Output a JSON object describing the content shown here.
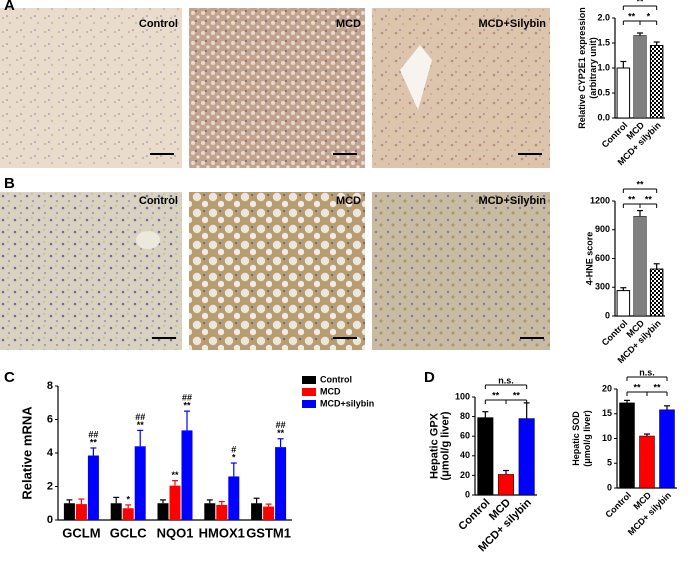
{
  "panels": [
    "A",
    "B",
    "C",
    "D"
  ],
  "image_rows": [
    [
      "Control",
      "MCD",
      "MCD+Silybin"
    ],
    [
      "Control",
      "MCD",
      "MCD+Silybin"
    ]
  ],
  "chart_data": [
    {
      "type": "bar",
      "ylabel": [
        "Relative CYP2E1 expression",
        "(arbitrary unit)"
      ],
      "categories": [
        "Control",
        "MCD",
        "MCD+ silybin"
      ],
      "values": [
        1.0,
        1.65,
        1.45
      ],
      "errors": [
        0.13,
        0.05,
        0.07
      ],
      "colors": [
        "#ffffff",
        "#808080",
        "#ffffff"
      ],
      "pattern": [
        null,
        null,
        "checkered"
      ],
      "ylim": [
        0,
        2.0
      ],
      "yticks": [
        {
          "value": 0,
          "label": "0.0"
        },
        0.5,
        {
          "value": 1,
          "label": "1.0"
        },
        1.5,
        {
          "value": 2,
          "label": "2.0"
        }
      ],
      "comparisons": [
        {
          "groups": [
            "Control",
            "MCD"
          ],
          "label": "**"
        },
        {
          "groups": [
            "MCD",
            "MCD+ silybin"
          ],
          "label": "*"
        },
        {
          "groups": [
            "Control",
            "MCD+ silybin"
          ],
          "label": "**"
        }
      ]
    },
    {
      "type": "bar",
      "ylabel": [
        "4-HNE score"
      ],
      "categories": [
        "Control",
        "MCD",
        "MCD+ silybin"
      ],
      "values": [
        265,
        1040,
        490
      ],
      "errors": [
        30,
        60,
        55
      ],
      "colors": [
        "#ffffff",
        "#808080",
        "#ffffff"
      ],
      "pattern": [
        null,
        null,
        "checkered"
      ],
      "ylim": [
        0,
        1200
      ],
      "yticks": [
        0,
        300,
        600,
        900,
        1200
      ],
      "comparisons": [
        {
          "groups": [
            "Control",
            "MCD"
          ],
          "label": "**"
        },
        {
          "groups": [
            "MCD",
            "MCD+ silybin"
          ],
          "label": "**"
        },
        {
          "groups": [
            "Control",
            "MCD+ silybin"
          ],
          "label": "**"
        }
      ]
    },
    {
      "type": "grouped_bar",
      "ylabel": [
        "Relative mRNA"
      ],
      "legend": "upper right",
      "categories": [
        "GCLM",
        "GCLC",
        "NQO1",
        "HMOX1",
        "GSTM1"
      ],
      "series": [
        {
          "name": "Control",
          "color": "#000000",
          "values": [
            1.0,
            1.0,
            1.0,
            1.0,
            1.0
          ],
          "errors": [
            0.2,
            0.35,
            0.2,
            0.2,
            0.3
          ]
        },
        {
          "name": "MCD",
          "color": "#ff0000",
          "values": [
            0.95,
            0.7,
            2.05,
            0.9,
            0.8
          ],
          "errors": [
            0.3,
            0.2,
            0.3,
            0.2,
            0.15
          ],
          "annotations": [
            null,
            [
              "*"
            ],
            [
              "**"
            ],
            null,
            null
          ]
        },
        {
          "name": "MCD+silybin",
          "color": "#0000ff",
          "values": [
            3.85,
            4.4,
            5.35,
            2.6,
            4.35
          ],
          "errors": [
            0.45,
            0.95,
            1.15,
            0.8,
            0.5
          ],
          "annotations": [
            [
              "##",
              "**"
            ],
            [
              "##",
              "**"
            ],
            [
              "##",
              "**"
            ],
            [
              "#",
              "*"
            ],
            [
              "##",
              "**"
            ]
          ]
        }
      ],
      "ylim": [
        0,
        8
      ],
      "yticks": [
        0,
        2,
        4,
        6,
        8
      ]
    },
    {
      "type": "bar",
      "ylabel": [
        "Hepatic GPX",
        "(μmol/g liver)"
      ],
      "categories": [
        "Control",
        "MCD",
        "MCD+ silybin"
      ],
      "values": [
        79,
        21,
        78
      ],
      "errors": [
        6,
        4,
        16
      ],
      "colors": [
        "#000000",
        "#ff0000",
        "#0000ff"
      ],
      "pattern": [
        null,
        null,
        null
      ],
      "ylim": [
        0,
        100
      ],
      "yticks": [
        0,
        20,
        40,
        60,
        80,
        100
      ],
      "comparisons": [
        {
          "groups": [
            "Control",
            "MCD"
          ],
          "label": "**"
        },
        {
          "groups": [
            "MCD",
            "MCD+ silybin"
          ],
          "label": "**"
        },
        {
          "groups": [
            "Control",
            "MCD+ silybin"
          ],
          "label": "n.s."
        }
      ]
    },
    {
      "type": "bar",
      "ylabel": [
        "Hepatic SOD",
        "(μmol/g liver)"
      ],
      "categories": [
        "Control",
        "MCD",
        "MCD+ silybin"
      ],
      "values": [
        17.2,
        10.5,
        15.8
      ],
      "errors": [
        0.5,
        0.4,
        0.8
      ],
      "colors": [
        "#000000",
        "#ff0000",
        "#0000ff"
      ],
      "pattern": [
        null,
        null,
        null
      ],
      "ylim": [
        0,
        20
      ],
      "yticks": [
        0,
        5,
        10,
        15,
        20
      ],
      "comparisons": [
        {
          "groups": [
            "Control",
            "MCD"
          ],
          "label": "**"
        },
        {
          "groups": [
            "MCD",
            "MCD+ silybin"
          ],
          "label": "**"
        },
        {
          "groups": [
            "Control",
            "MCD+ silybin"
          ],
          "label": "n.s."
        }
      ]
    }
  ]
}
